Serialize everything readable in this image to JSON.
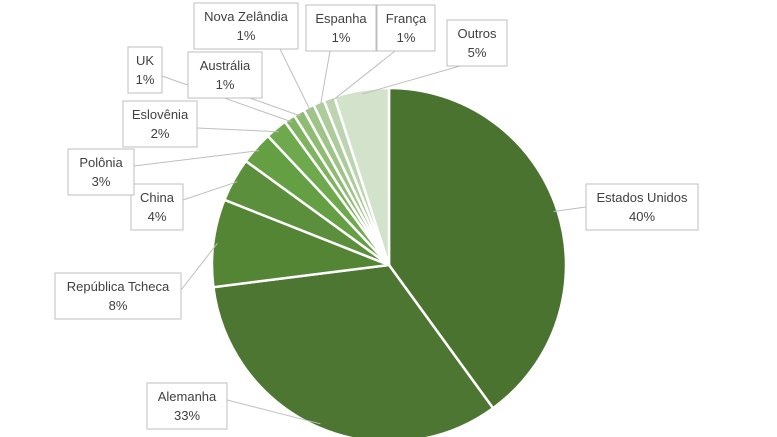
{
  "chart_data": {
    "type": "pie",
    "title": "",
    "legend": "none",
    "slices": [
      {
        "label": "Estados Unidos",
        "value": 40,
        "value_label": "40%",
        "color": "#4a7330"
      },
      {
        "label": "Alemanha",
        "value": 33,
        "value_label": "33%",
        "color": "#4c7631"
      },
      {
        "label": "República Tcheca",
        "value": 8,
        "value_label": "8%",
        "color": "#548535"
      },
      {
        "label": "China",
        "value": 4,
        "value_label": "4%",
        "color": "#5b8f3b"
      },
      {
        "label": "Polônia",
        "value": 3,
        "value_label": "3%",
        "color": "#649f44"
      },
      {
        "label": "Eslovênia",
        "value": 2,
        "value_label": "2%",
        "color": "#6ea94d"
      },
      {
        "label": "UK",
        "value": 1,
        "value_label": "1%",
        "color": "#7fb35f"
      },
      {
        "label": "Austrália",
        "value": 1,
        "value_label": "1%",
        "color": "#8fbc73"
      },
      {
        "label": "Nova Zelândia",
        "value": 1,
        "value_label": "1%",
        "color": "#9ec488"
      },
      {
        "label": "Espanha",
        "value": 1,
        "value_label": "1%",
        "color": "#adcc9c"
      },
      {
        "label": "França",
        "value": 1,
        "value_label": "1%",
        "color": "#bcd5b0"
      },
      {
        "label": "Outros",
        "value": 5,
        "value_label": "5%",
        "color": "#d3e3cb"
      }
    ]
  }
}
